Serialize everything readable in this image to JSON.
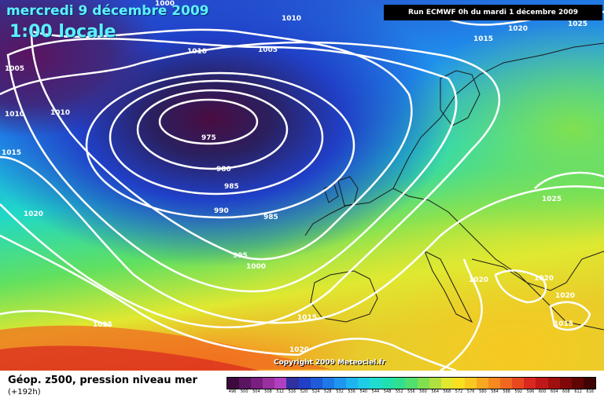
{
  "header": {
    "date": "mercredi 9 décembre 2009",
    "time": "1:00 locale",
    "run": "Run ECMWF 0h du mardi 1 décembre 2009"
  },
  "copyright": "Copyright 2009 Meteociel.fr",
  "footer": {
    "field_title": "Géop. z500, pression niveau mer",
    "lead": "(+192h)"
  },
  "legend": {
    "ticks": [
      "496",
      "500",
      "504",
      "508",
      "512",
      "516",
      "520",
      "524",
      "528",
      "532",
      "536",
      "540",
      "544",
      "548",
      "552",
      "556",
      "560",
      "564",
      "568",
      "572",
      "576",
      "580",
      "584",
      "588",
      "592",
      "596",
      "600",
      "604",
      "608",
      "612",
      "616"
    ],
    "colors": [
      "#3d0a3d",
      "#5a1460",
      "#7a1e80",
      "#9a30a0",
      "#b040c0",
      "#3030a0",
      "#2040c8",
      "#1f5ad8",
      "#1e78e8",
      "#1e96f0",
      "#1eb4f0",
      "#1ecce8",
      "#20dcd0",
      "#20e0b0",
      "#30e090",
      "#50e070",
      "#80e050",
      "#b0e040",
      "#e0e830",
      "#f8e020",
      "#f8c820",
      "#f8a820",
      "#f88820",
      "#f06820",
      "#e84820",
      "#d82820",
      "#c01818",
      "#a01010",
      "#800808",
      "#600404",
      "#400202"
    ]
  },
  "isobar_labels": [
    "1000",
    "1010",
    "1005",
    "1010",
    "1005",
    "1010",
    "1010",
    "1015",
    "975",
    "980",
    "985",
    "990",
    "985",
    "995",
    "1000",
    "1020",
    "1015",
    "1020",
    "1015",
    "1025",
    "1025",
    "1020",
    "1020",
    "1020",
    "1015",
    "1020",
    "1025"
  ],
  "colors": {
    "title_text": "#5ff0ff",
    "isobar": "#ffffff"
  }
}
